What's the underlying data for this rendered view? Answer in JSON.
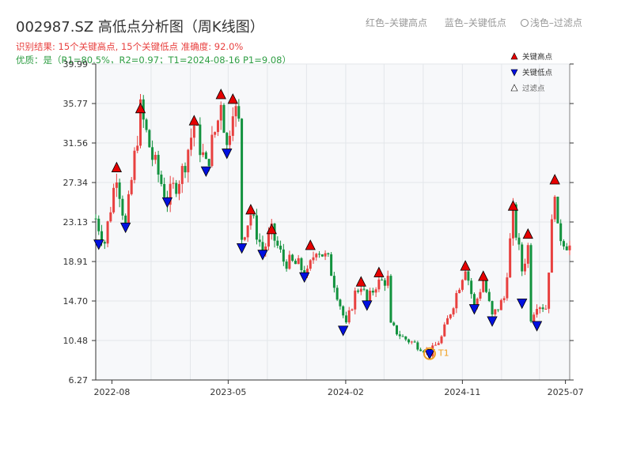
{
  "title": "002987.SZ 高低点分析图（周K线图）",
  "subtitle1": "识别结果: 15个关键高点, 15个关键低点   准确度: 92.0%",
  "subtitle2": "优质：是（R1=80.5%，R2=0.97；T1=2024-08-16 P1=9.08）",
  "top_legend": [
    "红色–关键高点",
    "蓝色–关键低点",
    "浅色–过滤点"
  ],
  "colors": {
    "up": "#e8403f",
    "down": "#12923e",
    "high_marker": "#e60000",
    "low_marker": "#0010e0",
    "t1": "#f0a020",
    "axis": "#333333",
    "plot_bg": "#f7f8fa",
    "grid": "#e3e6ea"
  },
  "chart_data": {
    "type": "candlestick",
    "xlim": [
      "2022-06-24",
      "2025-07-11"
    ],
    "ylim": [
      6.27,
      39.99
    ],
    "y_ticks": [
      6.27,
      10.48,
      14.7,
      18.91,
      23.13,
      27.34,
      31.56,
      35.77,
      39.99
    ],
    "y_tick_labels": [
      "6.27",
      "10.48",
      "14.70",
      "18.91",
      "23.13",
      "27.34",
      "31.56",
      "35.77",
      "39.99"
    ],
    "x_ticks": [
      "2022-08-01",
      "2023-05-01",
      "2024-02-01",
      "2024-11-01",
      "2025-07-01"
    ],
    "x_tick_labels": [
      "2022-08",
      "2023-05",
      "2024-02",
      "2024-11",
      "2025-07"
    ],
    "legend": [
      "关键高点",
      "关键低点",
      "过滤点"
    ],
    "annotation": {
      "label": "T1",
      "date": "2024-08-16",
      "price": 9.08
    },
    "price_path": [
      [
        "2022-06-24",
        23.5
      ],
      [
        "2022-07-15",
        21.0
      ],
      [
        "2022-08-12",
        28.5
      ],
      [
        "2022-09-02",
        22.5
      ],
      [
        "2022-10-07",
        35.0
      ],
      [
        "2022-11-04",
        30.0
      ],
      [
        "2022-12-09",
        25.5
      ],
      [
        "2023-01-13",
        28.5
      ],
      [
        "2023-02-10",
        33.5
      ],
      [
        "2023-03-10",
        29.0
      ],
      [
        "2023-04-07",
        34.0
      ],
      [
        "2023-04-14",
        36.5
      ],
      [
        "2023-04-28",
        31.0
      ],
      [
        "2023-05-12",
        36.0
      ],
      [
        "2023-05-26",
        33.5
      ],
      [
        "2023-06-02",
        21.5
      ],
      [
        "2023-06-23",
        24.0
      ],
      [
        "2023-07-21",
        20.0
      ],
      [
        "2023-08-11",
        22.0
      ],
      [
        "2023-09-08",
        19.0
      ],
      [
        "2023-10-13",
        18.5
      ],
      [
        "2023-11-03",
        17.5
      ],
      [
        "2023-11-24",
        20.5
      ],
      [
        "2023-12-22",
        19.0
      ],
      [
        "2024-02-02",
        12.0
      ],
      [
        "2024-02-23",
        15.5
      ],
      [
        "2024-03-08",
        16.5
      ],
      [
        "2024-03-22",
        14.5
      ],
      [
        "2024-04-12",
        16.5
      ],
      [
        "2024-05-10",
        17.0
      ],
      [
        "2024-05-17",
        12.0
      ],
      [
        "2024-06-14",
        10.8
      ],
      [
        "2024-07-26",
        9.8
      ],
      [
        "2024-08-16",
        9.1
      ],
      [
        "2024-09-13",
        10.8
      ],
      [
        "2024-10-11",
        14.5
      ],
      [
        "2024-11-08",
        18.5
      ],
      [
        "2024-11-29",
        14.0
      ],
      [
        "2024-12-20",
        17.0
      ],
      [
        "2025-01-10",
        13.0
      ],
      [
        "2025-02-07",
        15.0
      ],
      [
        "2025-02-28",
        24.0
      ],
      [
        "2025-03-21",
        18.0
      ],
      [
        "2025-04-04",
        20.5
      ],
      [
        "2025-04-11",
        13.0
      ],
      [
        "2025-04-25",
        14.5
      ],
      [
        "2025-05-16",
        14.0
      ],
      [
        "2025-06-06",
        27.0
      ],
      [
        "2025-06-13",
        22.0
      ],
      [
        "2025-07-11",
        20.5
      ]
    ],
    "key_highs": [
      [
        "2022-08-12",
        28.9
      ],
      [
        "2022-10-07",
        35.2
      ],
      [
        "2023-02-10",
        33.9
      ],
      [
        "2023-04-14",
        36.7
      ],
      [
        "2023-05-12",
        36.2
      ],
      [
        "2023-06-23",
        24.4
      ],
      [
        "2023-08-11",
        22.3
      ],
      [
        "2023-11-10",
        20.6
      ],
      [
        "2024-03-08",
        16.7
      ],
      [
        "2024-04-19",
        17.7
      ],
      [
        "2024-11-08",
        18.4
      ],
      [
        "2024-12-20",
        17.3
      ],
      [
        "2025-02-28",
        24.8
      ],
      [
        "2025-04-04",
        21.8
      ],
      [
        "2025-06-06",
        27.6
      ]
    ],
    "key_lows": [
      [
        "2022-07-01",
        20.8
      ],
      [
        "2022-09-02",
        22.6
      ],
      [
        "2022-12-09",
        25.3
      ],
      [
        "2023-03-10",
        28.6
      ],
      [
        "2023-04-28",
        30.5
      ],
      [
        "2023-06-02",
        20.4
      ],
      [
        "2023-07-21",
        19.7
      ],
      [
        "2023-10-27",
        17.3
      ],
      [
        "2024-01-26",
        11.6
      ],
      [
        "2024-03-22",
        14.3
      ],
      [
        "2024-08-16",
        9.1
      ],
      [
        "2024-11-29",
        13.9
      ],
      [
        "2025-01-10",
        12.6
      ],
      [
        "2025-03-21",
        14.5
      ],
      [
        "2025-04-25",
        12.1
      ]
    ],
    "filtered_points": []
  }
}
